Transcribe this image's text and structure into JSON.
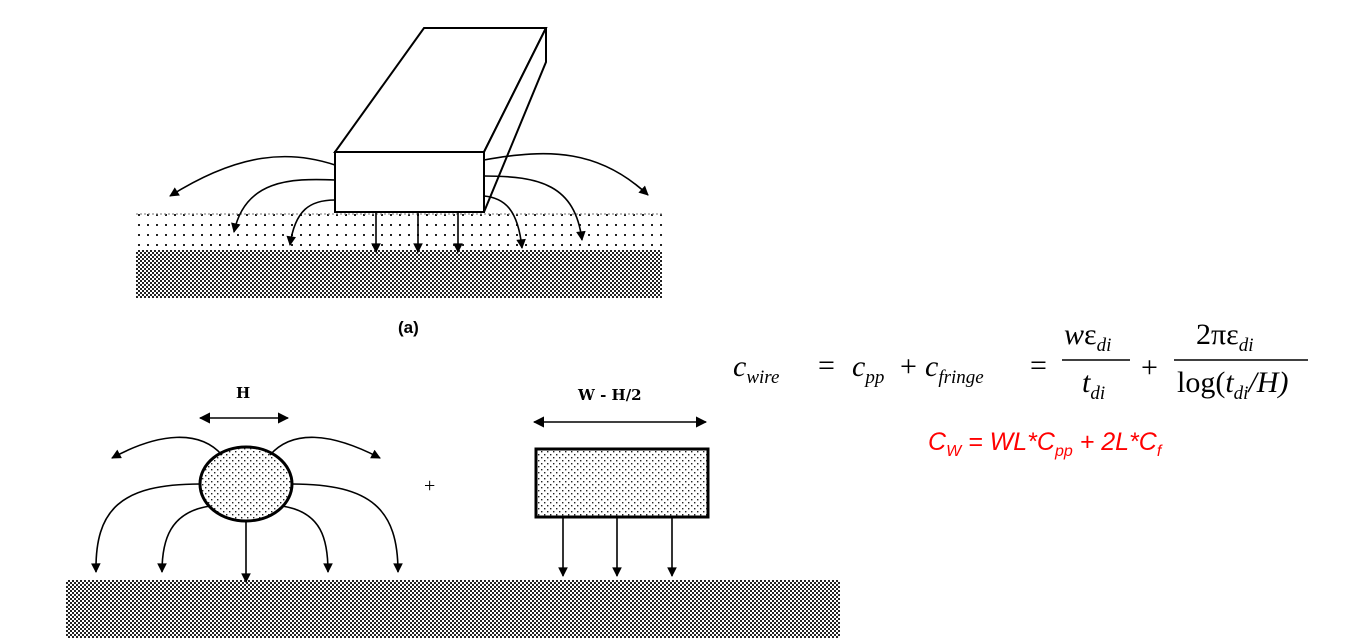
{
  "figure_a": {
    "caption": "(a)"
  },
  "figure_b": {
    "h_label": "H",
    "w_label": "W - H/2",
    "plus": "+"
  },
  "equation": {
    "lhs_var": "c",
    "lhs_sub": "wire",
    "eq1": "=",
    "t1_var": "c",
    "t1_sub": "pp",
    "plus1": "+",
    "t2_var": "c",
    "t2_sub": "fringe",
    "eq2": "=",
    "f1_num_w": "w",
    "f1_num_eps": "ε",
    "f1_num_sub": "di",
    "f1_den_var": "t",
    "f1_den_sub": "di",
    "plus2": "+",
    "f2_num_2pi": "2π",
    "f2_num_eps": "ε",
    "f2_num_sub": "di",
    "f2_den_log": "log(",
    "f2_den_t": "t",
    "f2_den_sub": "di",
    "f2_den_rest": "/H)"
  },
  "cw_formula": {
    "c": "C",
    "w_sub": "W",
    "mid1": " = WL*C",
    "pp_sub": "pp",
    "mid2": " + 2L*C",
    "f_sub": "f",
    "color": "#ff0000"
  }
}
